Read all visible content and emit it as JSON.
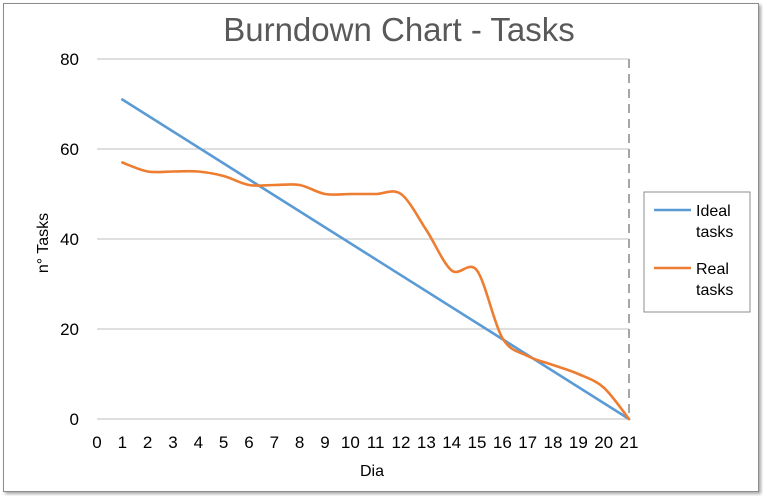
{
  "chart_data": {
    "type": "line",
    "title": "Burndown Chart - Tasks",
    "xlabel": "Dia",
    "ylabel": "n° Tasks",
    "xlim": [
      0,
      21
    ],
    "ylim": [
      0,
      80
    ],
    "x_ticks": [
      "0",
      "1",
      "2",
      "3",
      "4",
      "5",
      "6",
      "7",
      "8",
      "9",
      "10",
      "11",
      "12",
      "13",
      "14",
      "15",
      "16",
      "17",
      "18",
      "19",
      "20",
      "21"
    ],
    "y_ticks": [
      "0",
      "20",
      "40",
      "60",
      "80"
    ],
    "grid": "horizontal",
    "legend_position": "right",
    "series": [
      {
        "name": "Ideal tasks",
        "name_lines": [
          "Ideal",
          "tasks"
        ],
        "color": "#5b9bd5",
        "x": [
          1,
          21
        ],
        "values": [
          71,
          0
        ]
      },
      {
        "name": "Real tasks",
        "name_lines": [
          "Real",
          "tasks"
        ],
        "color": "#ed7d31",
        "x": [
          1,
          2,
          3,
          4,
          5,
          6,
          7,
          8,
          9,
          10,
          11,
          12,
          13,
          14,
          15,
          16,
          17,
          18,
          19,
          20,
          21
        ],
        "values": [
          57,
          55,
          55,
          55,
          54,
          52,
          52,
          52,
          50,
          50,
          50,
          50,
          42,
          33,
          33,
          18,
          14,
          12,
          10,
          7,
          0
        ]
      }
    ]
  }
}
